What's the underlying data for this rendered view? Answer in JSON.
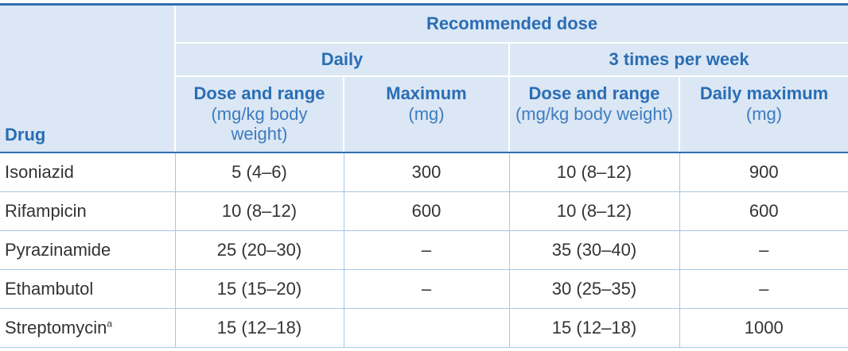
{
  "header": {
    "drug_label": "Drug",
    "recommended": "Recommended dose",
    "daily": "Daily",
    "weekly": "3 times per week",
    "columns": [
      {
        "title": "Dose and range",
        "unit": "(mg/kg body weight)"
      },
      {
        "title": "Maximum",
        "unit": "(mg)"
      },
      {
        "title": "Dose and range",
        "unit": "(mg/kg body weight)"
      },
      {
        "title": "Daily maximum",
        "unit": "(mg)"
      }
    ]
  },
  "rows": [
    {
      "drug": "Isoniazid",
      "values": [
        "5 (4–6)",
        "300",
        "10 (8–12)",
        "900"
      ]
    },
    {
      "drug": "Rifampicin",
      "values": [
        "10 (8–12)",
        "600",
        "10 (8–12)",
        "600"
      ]
    },
    {
      "drug": "Pyrazinamide",
      "values": [
        "25 (20–30)",
        "–",
        "35 (30–40)",
        "–"
      ]
    },
    {
      "drug": "Ethambutol",
      "values": [
        "15 (15–20)",
        "–",
        "30 (25–35)",
        "–"
      ]
    },
    {
      "drug": "Streptomycin",
      "drug_note": "a",
      "values": [
        "15 (12–18)",
        null,
        "15 (12–18)",
        "1000"
      ]
    }
  ]
}
